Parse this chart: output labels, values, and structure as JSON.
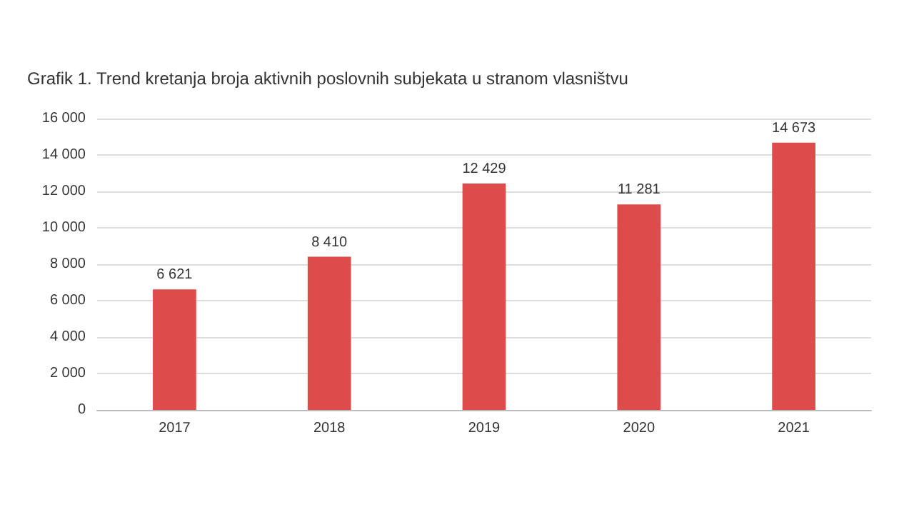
{
  "chart_data": {
    "type": "bar",
    "title": "Grafik 1. Trend kretanja broja aktivnih poslovnih subjekata u stranom vlasništvu",
    "categories": [
      "2017",
      "2018",
      "2019",
      "2020",
      "2021"
    ],
    "values": [
      6621,
      8410,
      12429,
      11281,
      14673
    ],
    "value_labels": [
      "6 621",
      "8 410",
      "12 429",
      "11 281",
      "14 673"
    ],
    "color": "#dd4b4b",
    "ylim": [
      0,
      16000
    ],
    "yticks": [
      {
        "value": 0,
        "label": "0"
      },
      {
        "value": 2000,
        "label": "2 000"
      },
      {
        "value": 4000,
        "label": "4 000"
      },
      {
        "value": 6000,
        "label": "6 000"
      },
      {
        "value": 8000,
        "label": "8 000"
      },
      {
        "value": 10000,
        "label": "10 000"
      },
      {
        "value": 12000,
        "label": "12 000"
      },
      {
        "value": 14000,
        "label": "14 000"
      },
      {
        "value": 16000,
        "label": "16 000"
      }
    ],
    "grid": "y"
  }
}
